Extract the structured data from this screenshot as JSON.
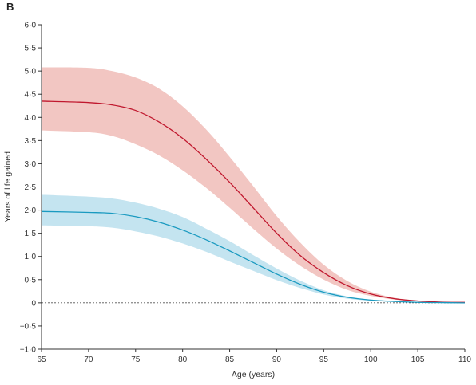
{
  "panel_label": "B",
  "chart_data": {
    "type": "line",
    "xlabel": "Age (years)",
    "ylabel": "Years of life gained",
    "xlim": [
      65,
      110
    ],
    "ylim": [
      -1.0,
      6.0
    ],
    "x_ticks": [
      65,
      70,
      75,
      80,
      85,
      90,
      95,
      100,
      105,
      110
    ],
    "y_ticks": [
      -1.0,
      -0.5,
      0,
      0.5,
      1.0,
      1.5,
      2.0,
      2.5,
      3.0,
      3.5,
      4.0,
      4.5,
      5.0,
      5.5,
      6.0
    ],
    "x_tick_labels": [
      "65",
      "70",
      "75",
      "80",
      "85",
      "90",
      "95",
      "100",
      "105",
      "110"
    ],
    "y_tick_labels": [
      "−1·0",
      "−0·5",
      "0",
      "0·5",
      "1·0",
      "1·5",
      "2·0",
      "2·5",
      "3·0",
      "3·5",
      "4·0",
      "4·5",
      "5·0",
      "5·5",
      "6·0"
    ],
    "reference_line": {
      "y": 0,
      "style": "dotted"
    },
    "x": [
      65,
      70,
      72.5,
      75,
      77.5,
      80,
      82.5,
      85,
      87.5,
      90,
      92.5,
      95,
      97.5,
      100,
      102.5,
      105,
      107.5,
      110
    ],
    "series": [
      {
        "color": "#c0182e",
        "band_color": "#f2c6c2",
        "values": [
          4.35,
          4.32,
          4.27,
          4.15,
          3.9,
          3.55,
          3.1,
          2.6,
          2.05,
          1.5,
          1.02,
          0.65,
          0.37,
          0.19,
          0.09,
          0.04,
          0.015,
          0.01
        ],
        "lower": [
          3.72,
          3.68,
          3.6,
          3.42,
          3.18,
          2.86,
          2.48,
          2.05,
          1.6,
          1.17,
          0.8,
          0.5,
          0.28,
          0.15,
          0.07,
          0.03,
          0.01,
          0.0
        ],
        "upper": [
          5.08,
          5.07,
          5.0,
          4.86,
          4.62,
          4.24,
          3.74,
          3.15,
          2.52,
          1.87,
          1.3,
          0.82,
          0.47,
          0.24,
          0.11,
          0.05,
          0.02,
          0.01
        ]
      },
      {
        "color": "#1a9ac0",
        "band_color": "#c4e4f0",
        "values": [
          1.97,
          1.95,
          1.93,
          1.86,
          1.74,
          1.57,
          1.36,
          1.12,
          0.87,
          0.62,
          0.4,
          0.23,
          0.12,
          0.06,
          0.03,
          0.01,
          0.005,
          0.0
        ],
        "lower": [
          1.67,
          1.65,
          1.62,
          1.54,
          1.43,
          1.28,
          1.1,
          0.89,
          0.69,
          0.49,
          0.32,
          0.18,
          0.09,
          0.045,
          0.02,
          0.01,
          0.0,
          0.0
        ],
        "upper": [
          2.33,
          2.29,
          2.25,
          2.16,
          2.03,
          1.85,
          1.6,
          1.33,
          1.03,
          0.74,
          0.48,
          0.27,
          0.14,
          0.07,
          0.035,
          0.015,
          0.005,
          0.0
        ]
      }
    ],
    "grid": false,
    "legend": false
  }
}
